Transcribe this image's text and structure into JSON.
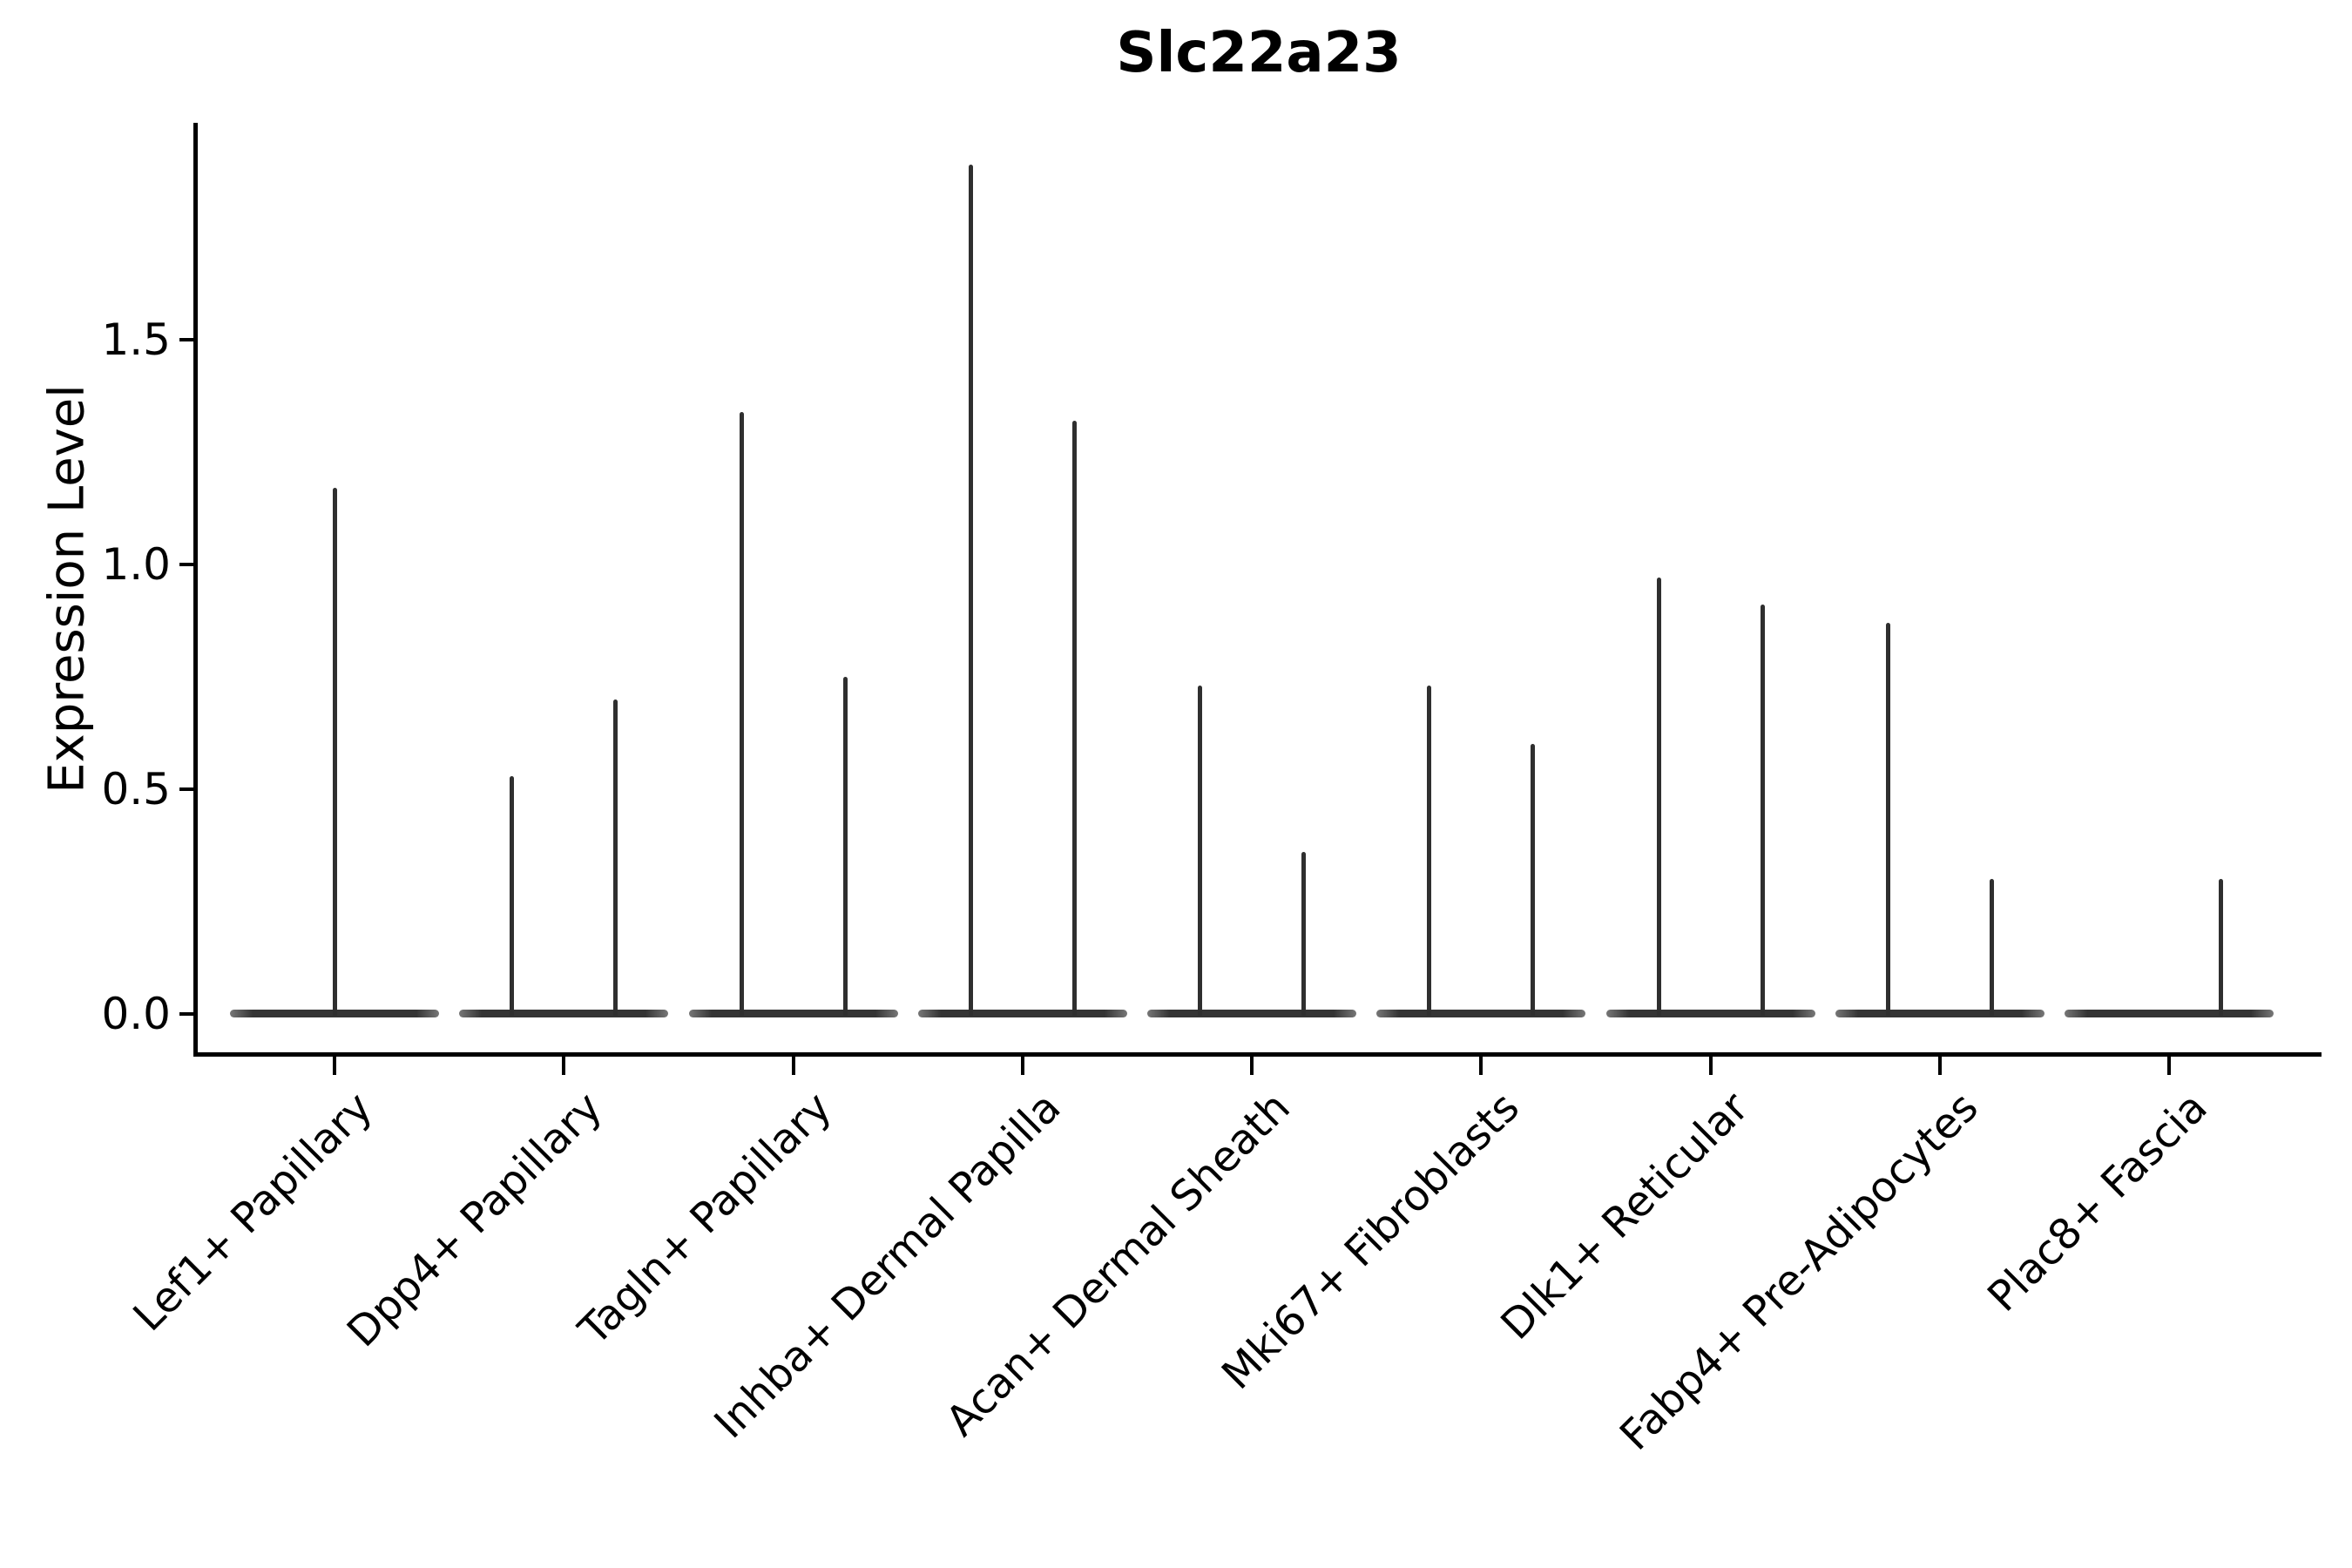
{
  "chart_data": {
    "type": "violin",
    "title": "Slc22a23",
    "ylabel": "Expression Level",
    "xlabel": "",
    "grid": false,
    "legend": "none",
    "ytick_labels": [
      "0.0",
      "0.5",
      "1.0",
      "1.5"
    ],
    "ytick_values": [
      0.0,
      0.5,
      1.0,
      1.5
    ],
    "ylim": [
      -0.09,
      1.98
    ],
    "categories": [
      "Lef1+ Papillary",
      "Dpp4+ Papillary",
      "Tagln+ Papillary",
      "Inhba+ Dermal Papilla",
      "Acan+ Dermal Sheath",
      "Mki67+ Fibroblasts",
      "Dlk1+ Reticular",
      "Fabp4+ Pre-Adipocytes",
      "Plac8+ Fascia"
    ],
    "violins": [
      {
        "category": "Lef1+ Papillary",
        "groups": [
          {
            "position": "center",
            "max_expression": 1.17
          }
        ]
      },
      {
        "category": "Dpp4+ Papillary",
        "groups": [
          {
            "position": "left",
            "max_expression": 0.53
          },
          {
            "position": "right",
            "max_expression": 0.7
          }
        ]
      },
      {
        "category": "Tagln+ Papillary",
        "groups": [
          {
            "position": "left",
            "max_expression": 1.34
          },
          {
            "position": "right",
            "max_expression": 0.75
          }
        ]
      },
      {
        "category": "Inhba+ Dermal Papilla",
        "groups": [
          {
            "position": "left",
            "max_expression": 1.89
          },
          {
            "position": "right",
            "max_expression": 1.32
          }
        ]
      },
      {
        "category": "Acan+ Dermal Sheath",
        "groups": [
          {
            "position": "left",
            "max_expression": 0.73
          },
          {
            "position": "right",
            "max_expression": 0.36
          }
        ]
      },
      {
        "category": "Mki67+ Fibroblasts",
        "groups": [
          {
            "position": "left",
            "max_expression": 0.73
          },
          {
            "position": "right",
            "max_expression": 0.6
          }
        ]
      },
      {
        "category": "Dlk1+ Reticular",
        "groups": [
          {
            "position": "left",
            "max_expression": 0.97
          },
          {
            "position": "right",
            "max_expression": 0.91
          }
        ]
      },
      {
        "category": "Fabp4+ Pre-Adipocytes",
        "groups": [
          {
            "position": "left",
            "max_expression": 0.87
          },
          {
            "position": "right",
            "max_expression": 0.3
          }
        ]
      },
      {
        "category": "Plac8+ Fascia",
        "groups": [
          {
            "position": "left",
            "max_expression": 0.0
          },
          {
            "position": "right",
            "max_expression": 0.3
          }
        ]
      }
    ],
    "colors": {
      "violin_fill": "#343434",
      "violin_tip": "#777777",
      "axis": "#000000",
      "text": "#000000",
      "background": "#ffffff"
    }
  }
}
